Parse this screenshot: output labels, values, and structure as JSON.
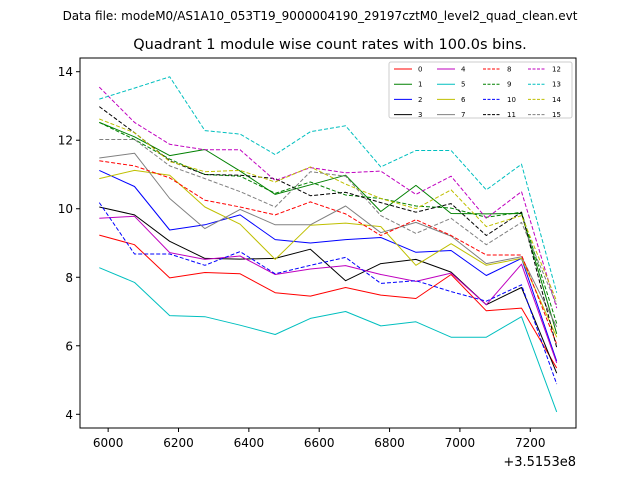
{
  "file_caption": "Data file: modeM0/AS1A10_053T19_9000004190_29197cztM0_level2_quad_clean.evt",
  "chart_data": {
    "type": "line",
    "title": "Quadrant 1 module wise count rates with 100.0s bins.",
    "xlabel": "",
    "ylabel": "",
    "x_offset_label": "+3.5153e8",
    "xlim": [
      5920,
      7330
    ],
    "ylim": [
      3.6,
      14.4
    ],
    "xticks": [
      6000,
      6200,
      6400,
      6600,
      6800,
      7000,
      7200
    ],
    "xtick_labels": [
      "6000",
      "6200",
      "6400",
      "6600",
      "6800",
      "7000",
      "7200"
    ],
    "yticks": [
      4,
      6,
      8,
      10,
      12,
      14
    ],
    "ytick_labels": [
      "4",
      "6",
      "8",
      "10",
      "12",
      "14"
    ],
    "x": [
      5975,
      6075,
      6175,
      6275,
      6375,
      6475,
      6575,
      6675,
      6775,
      6875,
      6975,
      7075,
      7175,
      7275
    ],
    "legend_position": "upper right",
    "series": [
      {
        "name": "0",
        "color": "#ff0000",
        "dash": "solid",
        "values": [
          9.23,
          8.95,
          7.98,
          8.14,
          8.1,
          7.55,
          7.45,
          7.7,
          7.48,
          7.38,
          8.08,
          7.02,
          7.1,
          5.35
        ]
      },
      {
        "name": "1",
        "color": "#008000",
        "dash": "solid",
        "values": [
          12.52,
          12.1,
          11.55,
          11.73,
          11.1,
          10.42,
          10.7,
          10.98,
          9.92,
          10.68,
          9.86,
          9.85,
          9.86,
          6.35
        ]
      },
      {
        "name": "2",
        "color": "#0000ff",
        "dash": "solid",
        "values": [
          11.12,
          10.65,
          9.38,
          9.53,
          9.82,
          9.1,
          9.0,
          9.1,
          9.16,
          8.73,
          8.78,
          8.05,
          8.55,
          5.55
        ]
      },
      {
        "name": "3",
        "color": "#000000",
        "dash": "solid",
        "values": [
          10.05,
          9.82,
          9.05,
          8.55,
          8.53,
          8.55,
          8.82,
          7.9,
          8.4,
          8.52,
          8.15,
          7.2,
          7.7,
          5.2
        ]
      },
      {
        "name": "4",
        "color": "#bf00bf",
        "dash": "solid",
        "values": [
          9.72,
          9.78,
          8.72,
          8.52,
          8.62,
          8.08,
          8.24,
          8.34,
          8.08,
          7.88,
          8.12,
          7.2,
          8.38,
          5.5
        ]
      },
      {
        "name": "5",
        "color": "#00bfbf",
        "dash": "solid",
        "values": [
          8.28,
          7.85,
          6.88,
          6.85,
          6.6,
          6.33,
          6.8,
          7.0,
          6.58,
          6.7,
          6.25,
          6.25,
          6.85,
          4.07
        ]
      },
      {
        "name": "6",
        "color": "#bfbf00",
        "dash": "solid",
        "values": [
          10.88,
          11.12,
          10.98,
          10.05,
          9.55,
          8.52,
          9.52,
          9.58,
          9.48,
          8.35,
          8.98,
          8.35,
          8.55,
          6.25
        ]
      },
      {
        "name": "7",
        "color": "#808080",
        "dash": "solid",
        "values": [
          11.48,
          11.62,
          10.3,
          9.42,
          9.98,
          9.53,
          9.53,
          10.08,
          9.3,
          9.6,
          9.2,
          8.4,
          8.6,
          6.55
        ]
      },
      {
        "name": "8",
        "color": "#ff0000",
        "dash": "dashed",
        "values": [
          11.4,
          11.25,
          10.9,
          10.25,
          10.05,
          9.82,
          10.2,
          9.85,
          9.22,
          9.68,
          9.22,
          8.65,
          8.65,
          6.05
        ]
      },
      {
        "name": "9",
        "color": "#008000",
        "dash": "dashed",
        "values": [
          12.52,
          12.02,
          11.45,
          11.0,
          10.95,
          10.45,
          10.78,
          10.4,
          10.3,
          10.08,
          10.02,
          9.75,
          9.9,
          6.65
        ]
      },
      {
        "name": "10",
        "color": "#0000ff",
        "dash": "dashed",
        "values": [
          10.18,
          8.68,
          8.68,
          8.35,
          8.75,
          8.1,
          8.35,
          8.58,
          7.82,
          7.9,
          7.58,
          7.3,
          7.78,
          4.88
        ]
      },
      {
        "name": "11",
        "color": "#000000",
        "dash": "dashed",
        "values": [
          12.98,
          12.22,
          11.4,
          11.0,
          10.98,
          10.88,
          10.38,
          10.48,
          10.18,
          9.9,
          10.15,
          9.22,
          9.9,
          5.95
        ]
      },
      {
        "name": "12",
        "color": "#bf00bf",
        "dash": "dashed",
        "values": [
          13.55,
          12.52,
          11.88,
          11.72,
          11.72,
          10.82,
          11.2,
          11.05,
          11.1,
          10.42,
          10.95,
          9.72,
          10.5,
          7.1
        ]
      },
      {
        "name": "13",
        "color": "#00bfbf",
        "dash": "dashed",
        "values": [
          13.2,
          13.52,
          13.85,
          12.28,
          12.18,
          11.58,
          12.25,
          12.42,
          11.22,
          11.7,
          11.7,
          10.55,
          11.3,
          7.55
        ]
      },
      {
        "name": "14",
        "color": "#bfbf00",
        "dash": "dashed",
        "values": [
          12.62,
          12.22,
          11.38,
          11.08,
          11.12,
          10.78,
          11.22,
          10.72,
          10.3,
          10.0,
          10.55,
          9.48,
          9.8,
          7.3
        ]
      },
      {
        "name": "15",
        "color": "#808080",
        "dash": "dashed",
        "values": [
          12.02,
          12.02,
          11.25,
          10.88,
          10.5,
          10.05,
          11.08,
          10.95,
          9.8,
          9.28,
          9.72,
          8.95,
          9.6,
          7.2
        ]
      }
    ]
  }
}
